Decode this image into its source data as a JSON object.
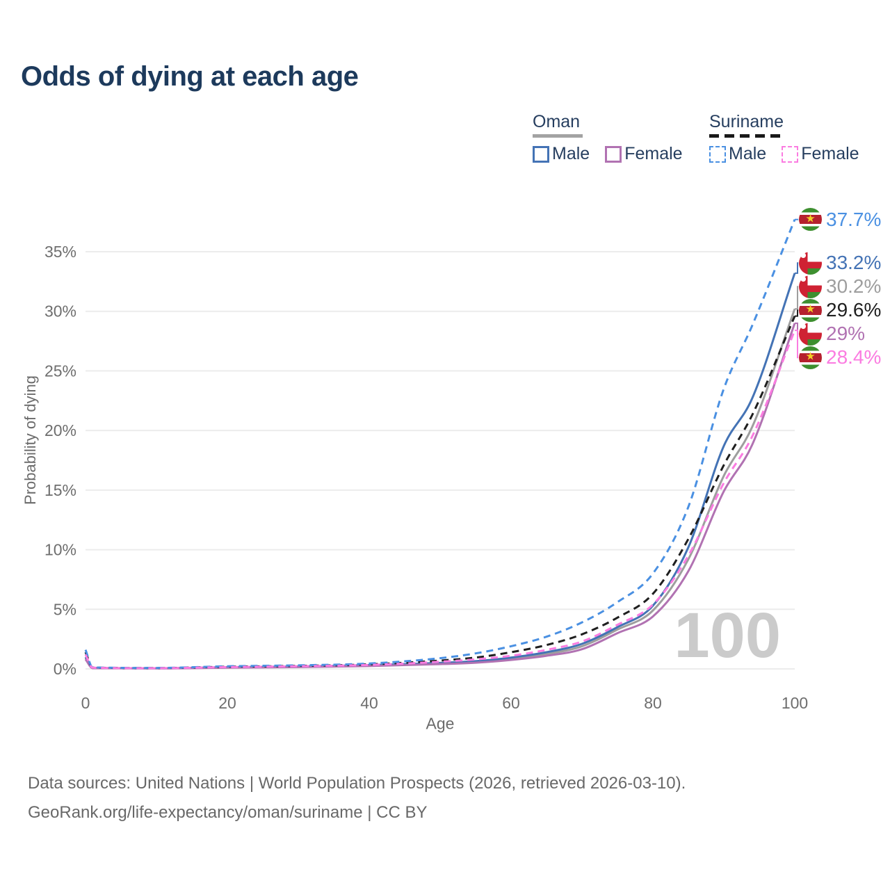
{
  "title": "Odds of dying at each age",
  "watermark": "100",
  "legend": {
    "oman": {
      "title": "Oman",
      "male_label": "Male",
      "female_label": "Female"
    },
    "suriname": {
      "title": "Suriname",
      "male_label": "Male",
      "female_label": "Female"
    }
  },
  "axes": {
    "y_title": "Probability of dying",
    "x_title": "Age",
    "y_ticks": [
      "0%",
      "5%",
      "10%",
      "15%",
      "20%",
      "25%",
      "30%",
      "35%"
    ],
    "x_ticks": [
      "0",
      "20",
      "40",
      "60",
      "80",
      "100"
    ]
  },
  "footer": {
    "line1": "Data sources: United Nations | World Population Prospects (2026, retrieved 2026-03-10).",
    "line2": "GeoRank.org/life-expectancy/oman/suriname | CC BY"
  },
  "colors": {
    "title": "#1d3a5c",
    "legend_text": "#263e5f",
    "tick_text": "#6e6e6e",
    "grid": "#ececec",
    "watermark": "#cbcbcb",
    "oman_male": "#4473b5",
    "oman_female": "#b172b2",
    "oman_total": "#9e9e9e",
    "suriname_male": "#4a90e2",
    "suriname_female": "#fb7ce1",
    "suriname_total": "#1f1f1f"
  },
  "chart_data": {
    "type": "line",
    "title": "Odds of dying at each age",
    "xlabel": "Age",
    "ylabel": "Probability of dying",
    "x_range": [
      0,
      100
    ],
    "y_range_pct": [
      0,
      38
    ],
    "grid": "horizontal",
    "y_tick_step_pct": 5,
    "x": [
      0,
      1,
      10,
      20,
      30,
      40,
      50,
      55,
      60,
      65,
      70,
      75,
      80,
      85,
      90,
      94,
      100
    ],
    "series": [
      {
        "name": "Suriname Male",
        "country": "suriname",
        "sex": "male",
        "style": "dashed",
        "color": "#4a90e2",
        "end_label": "37.7%",
        "end_value": 37.7,
        "values_pct": [
          1.6,
          0.12,
          0.08,
          0.22,
          0.3,
          0.45,
          0.9,
          1.3,
          1.9,
          2.7,
          3.9,
          5.6,
          8.0,
          13.6,
          23.5,
          28.8,
          37.7
        ]
      },
      {
        "name": "Oman Male",
        "country": "oman",
        "sex": "male",
        "style": "solid",
        "color": "#4473b5",
        "end_label": "33.2%",
        "end_value": 33.2,
        "values_pct": [
          1.0,
          0.08,
          0.05,
          0.14,
          0.2,
          0.32,
          0.5,
          0.65,
          0.95,
          1.4,
          2.1,
          3.5,
          5.3,
          10.2,
          18.7,
          22.7,
          33.2
        ]
      },
      {
        "name": "Oman Total",
        "country": "oman",
        "sex": "total",
        "style": "solid",
        "color": "#9e9e9e",
        "end_label": "30.2%",
        "end_value": 30.2,
        "values_pct": [
          0.9,
          0.07,
          0.05,
          0.12,
          0.17,
          0.28,
          0.45,
          0.6,
          0.85,
          1.25,
          1.9,
          3.3,
          4.9,
          9.2,
          16.2,
          20.3,
          30.2
        ]
      },
      {
        "name": "Suriname Total",
        "country": "suriname",
        "sex": "total",
        "style": "dashed",
        "color": "#1f1f1f",
        "end_label": "29.6%",
        "end_value": 29.6,
        "values_pct": [
          1.4,
          0.11,
          0.07,
          0.18,
          0.25,
          0.38,
          0.7,
          0.95,
          1.4,
          2.0,
          2.9,
          4.3,
          6.3,
          10.9,
          17.1,
          21.3,
          29.6
        ]
      },
      {
        "name": "Oman Female",
        "country": "oman",
        "sex": "female",
        "style": "solid",
        "color": "#b172b2",
        "end_label": "29%",
        "end_value": 29.0,
        "values_pct": [
          0.8,
          0.06,
          0.04,
          0.1,
          0.15,
          0.24,
          0.4,
          0.52,
          0.75,
          1.1,
          1.65,
          3.0,
          4.4,
          8.2,
          14.9,
          18.8,
          29.0
        ]
      },
      {
        "name": "Suriname Female",
        "country": "suriname",
        "sex": "female",
        "style": "dashed",
        "color": "#fb7ce1",
        "end_label": "28.4%",
        "end_value": 28.4,
        "values_pct": [
          1.2,
          0.1,
          0.06,
          0.15,
          0.22,
          0.33,
          0.6,
          0.8,
          1.1,
          1.6,
          2.3,
          3.7,
          5.4,
          9.5,
          15.6,
          19.5,
          28.4
        ]
      }
    ],
    "end_labels_order": [
      "37.7%",
      "33.2%",
      "30.2%",
      "29.6%",
      "29%",
      "28.4%"
    ],
    "legend_position": "top-right"
  }
}
